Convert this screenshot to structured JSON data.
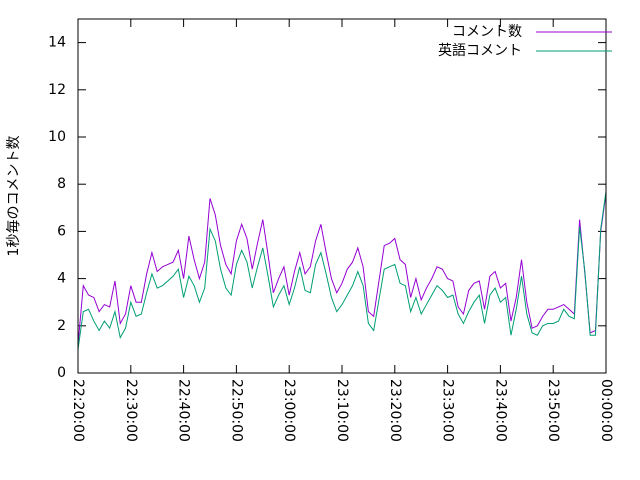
{
  "chart_data": {
    "type": "line",
    "y_label": "1秒毎のコメント数",
    "x": [
      "22:20:00",
      "22:21:00",
      "22:22:00",
      "22:23:00",
      "22:24:00",
      "22:25:00",
      "22:26:00",
      "22:27:00",
      "22:28:00",
      "22:29:00",
      "22:30:00",
      "22:31:00",
      "22:32:00",
      "22:33:00",
      "22:34:00",
      "22:35:00",
      "22:36:00",
      "22:37:00",
      "22:38:00",
      "22:39:00",
      "22:40:00",
      "22:41:00",
      "22:42:00",
      "22:43:00",
      "22:44:00",
      "22:45:00",
      "22:46:00",
      "22:47:00",
      "22:48:00",
      "22:49:00",
      "22:50:00",
      "22:51:00",
      "22:52:00",
      "22:53:00",
      "22:54:00",
      "22:55:00",
      "22:56:00",
      "22:57:00",
      "22:58:00",
      "22:59:00",
      "23:00:00",
      "23:01:00",
      "23:02:00",
      "23:03:00",
      "23:04:00",
      "23:05:00",
      "23:06:00",
      "23:07:00",
      "23:08:00",
      "23:09:00",
      "23:10:00",
      "23:11:00",
      "23:12:00",
      "23:13:00",
      "23:14:00",
      "23:15:00",
      "23:16:00",
      "23:17:00",
      "23:18:00",
      "23:19:00",
      "23:20:00",
      "23:21:00",
      "23:22:00",
      "23:23:00",
      "23:24:00",
      "23:25:00",
      "23:26:00",
      "23:27:00",
      "23:28:00",
      "23:29:00",
      "23:30:00",
      "23:31:00",
      "23:32:00",
      "23:33:00",
      "23:34:00",
      "23:35:00",
      "23:36:00",
      "23:37:00",
      "23:38:00",
      "23:39:00",
      "23:40:00",
      "23:41:00",
      "23:42:00",
      "23:43:00",
      "23:44:00",
      "23:45:00",
      "23:46:00",
      "23:47:00",
      "23:48:00",
      "23:49:00",
      "23:50:00",
      "23:51:00",
      "23:52:00",
      "23:53:00",
      "23:54:00",
      "23:55:00",
      "23:56:00",
      "23:57:00",
      "23:58:00",
      "23:59:00",
      "00:00:00"
    ],
    "series": [
      {
        "name": "コメント数",
        "color": "#9400d3",
        "values": [
          1.2,
          3.7,
          3.3,
          3.2,
          2.6,
          2.9,
          2.8,
          3.9,
          2.1,
          2.5,
          3.7,
          3.0,
          3.0,
          4.2,
          5.1,
          4.3,
          4.5,
          4.6,
          4.7,
          5.2,
          4.0,
          5.8,
          4.8,
          4.0,
          4.7,
          7.4,
          6.7,
          5.4,
          4.6,
          4.2,
          5.6,
          6.3,
          5.7,
          4.4,
          5.5,
          6.5,
          5.0,
          3.4,
          4.0,
          4.5,
          3.3,
          4.3,
          5.1,
          4.2,
          4.5,
          5.6,
          6.3,
          5.1,
          4.0,
          3.4,
          3.8,
          4.4,
          4.7,
          5.3,
          4.5,
          2.6,
          2.4,
          3.9,
          5.4,
          5.5,
          5.7,
          4.8,
          4.6,
          3.2,
          4.0,
          3.1,
          3.6,
          4.0,
          4.5,
          4.4,
          4.0,
          3.9,
          2.8,
          2.5,
          3.5,
          3.8,
          3.9,
          2.7,
          4.1,
          4.3,
          3.6,
          3.8,
          2.2,
          3.2,
          4.8,
          3.0,
          1.9,
          2.0,
          2.4,
          2.7,
          2.7,
          2.8,
          2.9,
          2.7,
          2.5,
          6.5,
          4.2,
          1.7,
          1.8,
          6.0,
          7.6
        ]
      },
      {
        "name": "英語コメント",
        "color": "#009e73",
        "values": [
          1.0,
          2.6,
          2.7,
          2.2,
          1.8,
          2.2,
          1.9,
          2.6,
          1.5,
          1.9,
          3.0,
          2.4,
          2.5,
          3.4,
          4.2,
          3.6,
          3.7,
          3.9,
          4.1,
          4.4,
          3.2,
          4.1,
          3.7,
          3.0,
          3.6,
          6.1,
          5.6,
          4.4,
          3.6,
          3.3,
          4.6,
          5.2,
          4.7,
          3.6,
          4.5,
          5.3,
          4.1,
          2.8,
          3.3,
          3.7,
          2.9,
          3.6,
          4.5,
          3.5,
          3.4,
          4.6,
          5.1,
          4.2,
          3.2,
          2.6,
          2.9,
          3.3,
          3.7,
          4.3,
          3.7,
          2.1,
          1.8,
          3.1,
          4.4,
          4.5,
          4.6,
          3.8,
          3.7,
          2.6,
          3.2,
          2.5,
          2.9,
          3.3,
          3.7,
          3.5,
          3.2,
          3.3,
          2.5,
          2.1,
          2.6,
          3.0,
          3.3,
          2.1,
          3.3,
          3.6,
          3.0,
          3.2,
          1.6,
          2.7,
          4.1,
          2.5,
          1.7,
          1.6,
          2.0,
          2.1,
          2.1,
          2.2,
          2.7,
          2.4,
          2.3,
          6.2,
          4.3,
          1.6,
          1.6,
          6.1,
          7.7
        ]
      }
    ],
    "xlim": [
      "22:20:00",
      "00:00:00"
    ],
    "xticks": [
      "22:20:00",
      "22:30:00",
      "22:40:00",
      "22:50:00",
      "23:00:00",
      "23:10:00",
      "23:20:00",
      "23:30:00",
      "23:40:00",
      "23:50:00",
      "00:00:00"
    ],
    "ylim": [
      0,
      15
    ],
    "yticks": [
      0,
      2,
      4,
      6,
      8,
      10,
      12,
      14
    ],
    "legend": "top-right",
    "grid": false
  }
}
